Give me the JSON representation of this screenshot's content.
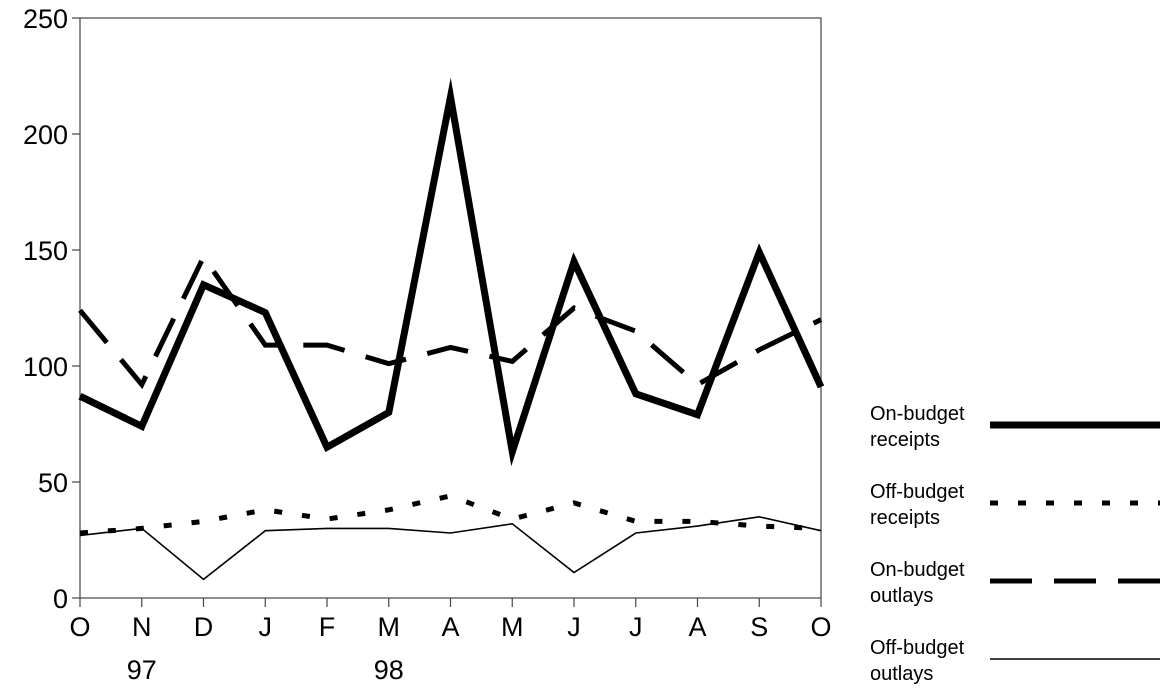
{
  "chart_data": {
    "type": "line",
    "title": "",
    "xlabel": "",
    "ylabel": "",
    "ylim": [
      0,
      250
    ],
    "yticks": [
      0,
      50,
      100,
      150,
      200,
      250
    ],
    "categories": [
      "O",
      "N",
      "D",
      "J",
      "F",
      "M",
      "A",
      "M",
      "J",
      "J",
      "A",
      "S",
      "O"
    ],
    "year_labels": [
      {
        "index": 1,
        "label": "97"
      },
      {
        "index": 5,
        "label": "98"
      }
    ],
    "grid": false,
    "legend_position": "right",
    "series": [
      {
        "name": "On-budget receipts",
        "style": "thick-solid",
        "values": [
          87,
          74,
          135,
          123,
          65,
          80,
          216,
          63,
          145,
          88,
          79,
          149,
          91
        ]
      },
      {
        "name": "Off-budget receipts",
        "style": "dotted",
        "values": [
          28,
          30,
          33,
          38,
          34,
          38,
          44,
          34,
          41,
          33,
          33,
          31,
          30
        ]
      },
      {
        "name": "On-budget outlays",
        "style": "thick-dashed",
        "values": [
          124,
          92,
          147,
          109,
          109,
          101,
          108,
          102,
          125,
          115,
          92,
          107,
          120
        ]
      },
      {
        "name": "Off-budget outlays",
        "style": "thin-solid",
        "values": [
          27,
          30,
          8,
          29,
          30,
          30,
          28,
          32,
          11,
          28,
          31,
          35,
          29
        ]
      }
    ],
    "legend": [
      {
        "label_line1": "On-budget",
        "label_line2": "receipts",
        "style": "thick-solid"
      },
      {
        "label_line1": "Off-budget",
        "label_line2": "receipts",
        "style": "dotted"
      },
      {
        "label_line1": "On-budget",
        "label_line2": "outlays",
        "style": "thick-dashed"
      },
      {
        "label_line1": "Off-budget",
        "label_line2": "outlays",
        "style": "thin-solid"
      }
    ],
    "colors": {
      "line": "#000000",
      "axis": "#444444",
      "background": "#ffffff"
    }
  }
}
